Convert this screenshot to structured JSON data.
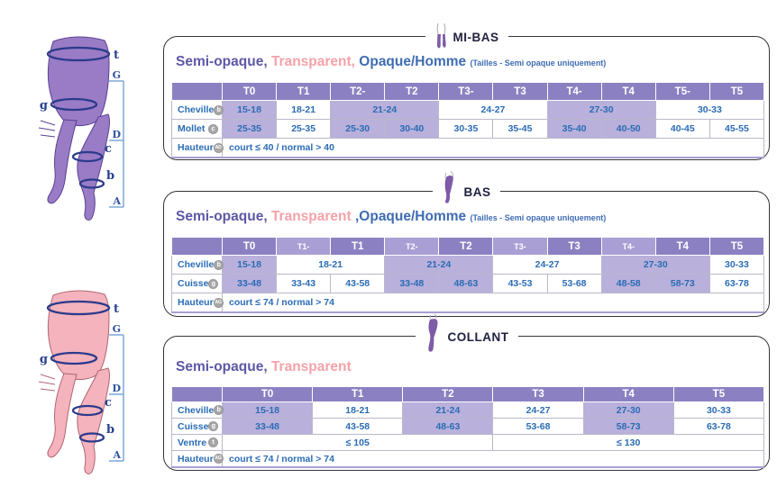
{
  "palette": {
    "header_purple": "#8b81c2",
    "header_purple_light": "#a99fd4",
    "cell_highlight": "#b9b0db",
    "cell_text_blue": "#2a6cb5",
    "box_border": "#343434",
    "title_navy": "#20213f",
    "semi_opaque_color": "#5d57a6",
    "transparent_color": "#f4a2a8",
    "opaque_color": "#3e6cb2",
    "badge_gray": "#a8a8a8",
    "figure_purple": "#9a7bc5",
    "figure_pink": "#f4b3bd",
    "measure_band_blue": "#2b3a8c",
    "ruler_blue": "#7aa9d8"
  },
  "figures": {
    "labels": {
      "waist": "t",
      "ruler_top": "G",
      "thigh": "g",
      "ruler_mid": "D",
      "calf": "c",
      "ankle": "b",
      "ruler_bottom": "A"
    }
  },
  "sections": [
    {
      "id": "mi-bas",
      "title": "MI-BAS",
      "subtitle": [
        {
          "text": "Semi-opaque,",
          "style": "semi"
        },
        {
          "text": " Transparent,",
          "style": "pink"
        },
        {
          "text": " Opaque/Homme ",
          "style": "opaque"
        },
        {
          "text": "(Tailles - Semi opaque uniquement)",
          "style": "note"
        }
      ],
      "table": {
        "label_col_width": 56,
        "columns": 10,
        "header": [
          {
            "t": ""
          },
          {
            "t": "T0"
          },
          {
            "t": "T1"
          },
          {
            "t": "T2-"
          },
          {
            "t": "T2"
          },
          {
            "t": "T3-"
          },
          {
            "t": "T3"
          },
          {
            "t": "T4-"
          },
          {
            "t": "T4"
          },
          {
            "t": "T5-"
          },
          {
            "t": "T5"
          }
        ],
        "rows": [
          {
            "label": "Cheville",
            "badge": "b",
            "cells": [
              {
                "t": "15-18",
                "hl": true
              },
              {
                "t": "18-21"
              },
              {
                "t": "21-24",
                "cs": 2,
                "hl": true
              },
              {
                "t": "24-27",
                "cs": 2
              },
              {
                "t": "27-30",
                "cs": 2,
                "hl": true
              },
              {
                "t": "30-33",
                "cs": 2
              }
            ]
          },
          {
            "label": "Mollet",
            "badge": "c",
            "cells": [
              {
                "t": "25-35",
                "hl": true
              },
              {
                "t": "25-35"
              },
              {
                "t": "25-30",
                "hl": true
              },
              {
                "t": "30-40",
                "hl": true
              },
              {
                "t": "30-35"
              },
              {
                "t": "35-45"
              },
              {
                "t": "35-40",
                "hl": true
              },
              {
                "t": "40-50",
                "hl": true
              },
              {
                "t": "40-45"
              },
              {
                "t": "45-55"
              }
            ]
          },
          {
            "label": "Hauteur",
            "badge": "AD",
            "cells": [
              {
                "t": "court ≤ 40 / normal > 40",
                "cs": 10,
                "left": true
              }
            ]
          }
        ]
      }
    },
    {
      "id": "bas",
      "title": "BAS",
      "subtitle": [
        {
          "text": "Semi-opaque,",
          "style": "semi"
        },
        {
          "text": " Transparent ",
          "style": "pink"
        },
        {
          "text": ",Opaque/Homme ",
          "style": "opaque"
        },
        {
          "text": "(Tailles - Semi opaque uniquement)",
          "style": "note"
        }
      ],
      "table": {
        "label_col_width": 56,
        "columns": 10,
        "header": [
          {
            "t": ""
          },
          {
            "t": "T0"
          },
          {
            "t": "T1-",
            "light": true
          },
          {
            "t": "T1"
          },
          {
            "t": "T2-",
            "light": true
          },
          {
            "t": "T2"
          },
          {
            "t": "T3-",
            "light": true
          },
          {
            "t": "T3"
          },
          {
            "t": "T4-",
            "light": true
          },
          {
            "t": "T4"
          },
          {
            "t": "T5"
          }
        ],
        "rows": [
          {
            "label": "Cheville",
            "badge": "b",
            "cells": [
              {
                "t": "15-18",
                "hl": true
              },
              {
                "t": "18-21",
                "cs": 2
              },
              {
                "t": "21-24",
                "cs": 2,
                "hl": true
              },
              {
                "t": "24-27",
                "cs": 2
              },
              {
                "t": "27-30",
                "cs": 2,
                "hl": true
              },
              {
                "t": "30-33"
              }
            ]
          },
          {
            "label": "Cuisse",
            "badge": "g",
            "cells": [
              {
                "t": "33-48",
                "hl": true
              },
              {
                "t": "33-43"
              },
              {
                "t": "43-58"
              },
              {
                "t": "33-48",
                "hl": true
              },
              {
                "t": "48-63",
                "hl": true
              },
              {
                "t": "43-53"
              },
              {
                "t": "53-68"
              },
              {
                "t": "48-58",
                "hl": true
              },
              {
                "t": "58-73",
                "hl": true
              },
              {
                "t": "63-78"
              }
            ]
          },
          {
            "label": "Hauteur",
            "badge": "AG",
            "cells": [
              {
                "t": "court ≤ 74 / normal > 74",
                "cs": 10,
                "left": true
              }
            ]
          }
        ]
      }
    },
    {
      "id": "collant",
      "title": "COLLANT",
      "subtitle": [
        {
          "text": "Semi-opaque,",
          "style": "semi"
        },
        {
          "text": " Transparent",
          "style": "pink"
        }
      ],
      "table": {
        "label_col_width": 56,
        "columns": 6,
        "header": [
          {
            "t": ""
          },
          {
            "t": "T0"
          },
          {
            "t": "T1"
          },
          {
            "t": "T2"
          },
          {
            "t": "T3"
          },
          {
            "t": "T4"
          },
          {
            "t": "T5"
          }
        ],
        "rows": [
          {
            "label": "Cheville",
            "badge": "b",
            "cells": [
              {
                "t": "15-18",
                "hl": true
              },
              {
                "t": "18-21"
              },
              {
                "t": "21-24",
                "hl": true
              },
              {
                "t": "24-27"
              },
              {
                "t": "27-30",
                "hl": true
              },
              {
                "t": "30-33"
              }
            ]
          },
          {
            "label": "Cuisse",
            "badge": "g",
            "cells": [
              {
                "t": "33-48",
                "hl": true
              },
              {
                "t": "43-58"
              },
              {
                "t": "48-63",
                "hl": true
              },
              {
                "t": "53-68"
              },
              {
                "t": "58-73",
                "hl": true
              },
              {
                "t": "63-78"
              }
            ]
          },
          {
            "label": "Ventre",
            "badge": "t",
            "cells": [
              {
                "t": "≤ 105",
                "cs": 3
              },
              {
                "t": "≤ 130",
                "cs": 3
              }
            ]
          },
          {
            "label": "Hauteur",
            "badge": "AG",
            "cells": [
              {
                "t": "court ≤ 74 / normal > 74",
                "cs": 6,
                "left": true
              }
            ]
          }
        ]
      }
    }
  ]
}
